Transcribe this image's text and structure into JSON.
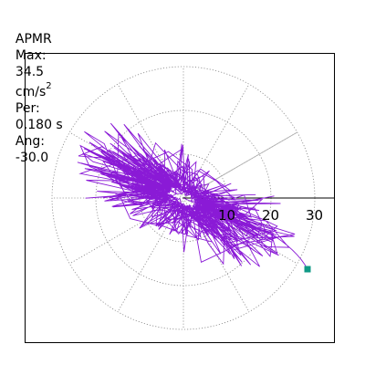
{
  "header": {
    "label": "APMR",
    "max_label": "Max:",
    "max_value": "34.5",
    "max_unit": "cm/s",
    "max_unit_exp": "2",
    "per_label": "Per:",
    "per_value": "0.180 s",
    "ang_label": "Ang:",
    "ang_value": "-30.0"
  },
  "plot": {
    "ring_labels": [
      "10",
      "20",
      "30"
    ],
    "angle_deg": -30.0,
    "trace_color": "#8a1ad6",
    "marker_color": "#0f9a86"
  }
}
